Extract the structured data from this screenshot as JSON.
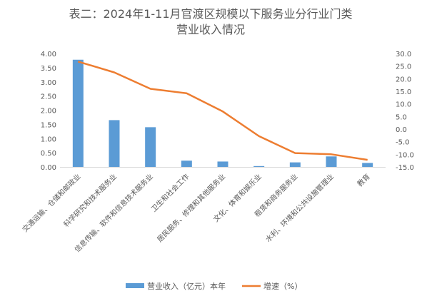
{
  "chart_data": {
    "type": "bar",
    "title": [
      "表二：2024年1-11月官渡区规模以下服务业分行业门类",
      "营业收入情况"
    ],
    "categories": [
      "交通运输、仓储和邮政业",
      "科学研究和技术服务业",
      "信息传输、软件和信息技术服务业",
      "卫生和社会工作",
      "居民服务、修理和其他服务业",
      "文化、体育和娱乐业",
      "租赁和商务服务业",
      "水利、环境和公共设施管理业",
      "教育"
    ],
    "series": [
      {
        "name": "营业收入（亿元）本年",
        "type": "bar",
        "axis": "left",
        "color": "#5B9BD5",
        "values": [
          3.78,
          1.65,
          1.4,
          0.22,
          0.19,
          0.03,
          0.16,
          0.37,
          0.14
        ]
      },
      {
        "name": "增速（%）",
        "type": "line",
        "axis": "right",
        "color": "#ED7D31",
        "values": [
          26.8,
          22.5,
          16.0,
          14.2,
          7.0,
          -2.8,
          -9.5,
          -10.0,
          -12.2
        ]
      }
    ],
    "y_left": {
      "ylim": [
        0,
        4
      ],
      "ticks": [
        "0.00",
        "0.50",
        "1.00",
        "1.50",
        "2.00",
        "2.50",
        "3.00",
        "3.50",
        "4.00"
      ]
    },
    "y_right": {
      "ylim": [
        -15,
        30
      ],
      "ticks": [
        "-15.0",
        "-10.0",
        "-5.0",
        "0.0",
        "5.0",
        "10.0",
        "15.0",
        "20.0",
        "25.0",
        "30.0"
      ]
    },
    "grid": false,
    "legend": "bottom"
  }
}
